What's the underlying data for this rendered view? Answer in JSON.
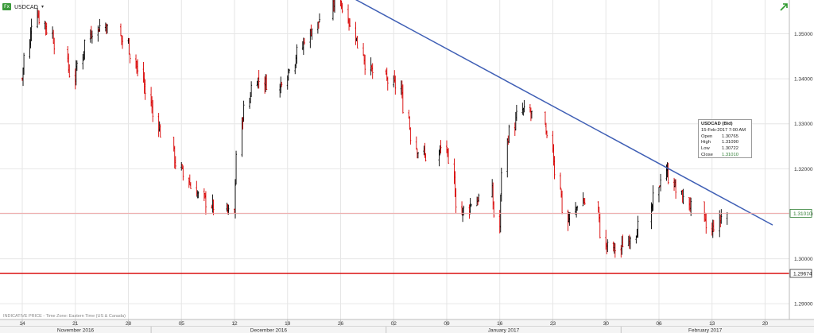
{
  "header": {
    "symbol": "USDCAD",
    "fx_badge": "Fx",
    "dropdown_caret": "▾"
  },
  "footer": {
    "note": "INDICATIVE PRICE - Time Zone: Eastern Time (US & Canada)"
  },
  "tooltip": {
    "title": "USDCAD (Bid)",
    "datetime": "15-Feb-2017 7:00 AM",
    "rows": [
      {
        "label": "Open",
        "value": "1.30765"
      },
      {
        "label": "High",
        "value": "1.31090"
      },
      {
        "label": "Low",
        "value": "1.30722"
      },
      {
        "label": "Close",
        "value": "1.31010"
      }
    ]
  },
  "colors": {
    "up": "#000000",
    "down": "#d80000",
    "trendline": "#3f5fb5",
    "support": "#d80000",
    "current_line": "#f0a8a8",
    "grid": "#e6e6e6",
    "close_green": "#2e7d32"
  },
  "chart_data": {
    "type": "candlestick",
    "symbol": "USDCAD",
    "yaxis": {
      "ticks": [
        "1.29000",
        "1.30000",
        "1.31000",
        "1.32000",
        "1.33000",
        "1.34000",
        "1.35000"
      ],
      "ylim": [
        1.2865,
        1.3575
      ]
    },
    "xaxis": {
      "day_ticks": [
        "14",
        "21",
        "28",
        "05",
        "12",
        "19",
        "26",
        "02",
        "09",
        "16",
        "23",
        "30",
        "06",
        "13",
        "20"
      ],
      "months": [
        "November 2016",
        "December 2016",
        "January 2017",
        "February 2017"
      ],
      "range": [
        "2016-11-14",
        "2017-02-21"
      ]
    },
    "last_price": {
      "label": "1.31010",
      "value": 1.3101
    },
    "support": {
      "label": "1.29674",
      "value": 1.29674
    },
    "trendline": {
      "from": {
        "date": "2016-12-27",
        "value": 1.3585
      },
      "to": {
        "date": "2017-02-21",
        "value": 1.3075
      }
    },
    "anchors": [
      [
        "2016-11-14",
        1.34
      ],
      [
        "2016-11-16",
        1.355
      ],
      [
        "2016-11-18",
        1.35
      ],
      [
        "2016-11-21",
        1.34
      ],
      [
        "2016-11-23",
        1.35
      ],
      [
        "2016-11-25",
        1.352
      ],
      [
        "2016-11-28",
        1.348
      ],
      [
        "2016-11-30",
        1.34
      ],
      [
        "2016-12-02",
        1.33
      ],
      [
        "2016-12-05",
        1.32
      ],
      [
        "2016-12-07",
        1.315
      ],
      [
        "2016-12-09",
        1.312
      ],
      [
        "2016-12-12",
        1.31
      ],
      [
        "2016-12-13",
        1.33
      ],
      [
        "2016-12-15",
        1.34
      ],
      [
        "2016-12-18",
        1.338
      ],
      [
        "2016-12-20",
        1.344
      ],
      [
        "2016-12-22",
        1.35
      ],
      [
        "2016-12-24",
        1.354
      ],
      [
        "2016-12-26",
        1.358
      ],
      [
        "2016-12-28",
        1.35
      ],
      [
        "2016-12-30",
        1.342
      ],
      [
        "2017-01-03",
        1.338
      ],
      [
        "2017-01-05",
        1.325
      ],
      [
        "2017-01-07",
        1.322
      ],
      [
        "2017-01-09",
        1.325
      ],
      [
        "2017-01-11",
        1.31
      ],
      [
        "2017-01-13",
        1.313
      ],
      [
        "2017-01-15",
        1.315
      ],
      [
        "2017-01-16",
        1.307
      ],
      [
        "2017-01-17",
        1.326
      ],
      [
        "2017-01-19",
        1.333
      ],
      [
        "2017-01-21",
        1.332
      ],
      [
        "2017-01-23",
        1.325
      ],
      [
        "2017-01-25",
        1.308
      ],
      [
        "2017-01-27",
        1.313
      ],
      [
        "2017-01-29",
        1.311
      ],
      [
        "2017-01-30",
        1.303
      ],
      [
        "2017-02-01",
        1.302
      ],
      [
        "2017-02-03",
        1.306
      ],
      [
        "2017-02-05",
        1.31
      ],
      [
        "2017-02-07",
        1.32
      ],
      [
        "2017-02-09",
        1.314
      ],
      [
        "2017-02-11",
        1.311
      ],
      [
        "2017-02-13",
        1.306
      ],
      [
        "2017-02-15",
        1.3101
      ]
    ]
  }
}
